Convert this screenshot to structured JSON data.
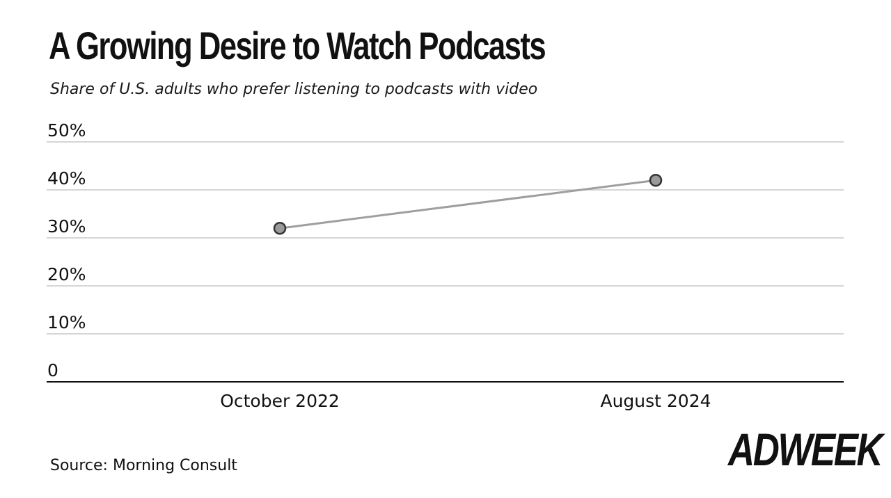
{
  "header": {
    "title": "A Growing Desire to Watch Podcasts",
    "subtitle": "Share of U.S. adults who prefer listening to podcasts with video"
  },
  "footer": {
    "source": "Source: Morning Consult",
    "brand": "ADWEEK"
  },
  "colors": {
    "line": "#9e9e9e",
    "marker_fill": "#9a9a9a",
    "marker_stroke": "#333333",
    "grid": "#c8c8c8",
    "baseline": "#111111"
  },
  "chart_data": {
    "type": "line",
    "title": "A Growing Desire to Watch Podcasts",
    "subtitle": "Share of U.S. adults who prefer listening to podcasts with video",
    "categories": [
      "October 2022",
      "August 2024"
    ],
    "series": [
      {
        "values": [
          32,
          42
        ]
      }
    ],
    "yticks": [
      {
        "value": 0,
        "label": "0"
      },
      {
        "value": 10,
        "label": "10%"
      },
      {
        "value": 20,
        "label": "20%"
      },
      {
        "value": 30,
        "label": "30%"
      },
      {
        "value": 40,
        "label": "40%"
      },
      {
        "value": 50,
        "label": "50%"
      }
    ],
    "ylim": [
      0,
      50
    ],
    "grid": true,
    "legend": "none"
  }
}
